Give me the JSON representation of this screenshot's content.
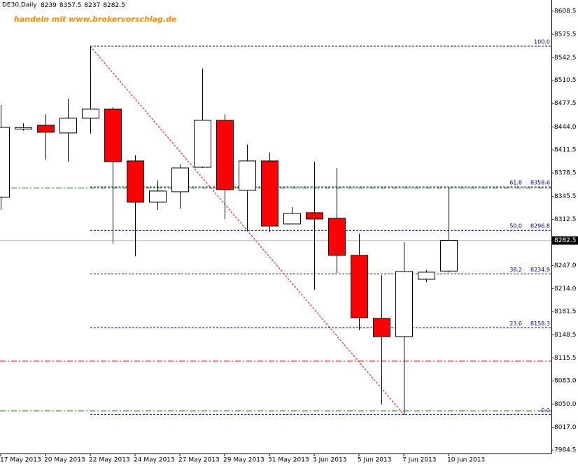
{
  "chart_data": {
    "type": "candlestick",
    "title": "DE30,Daily",
    "watermark": "handeln mit www.brokervorschlag.de",
    "categories": [
      "17 May 2013",
      null,
      "20 May 2013",
      null,
      "22 May 2013",
      null,
      "24 May 2013",
      null,
      "27 May 2013",
      null,
      "29 May 2013",
      null,
      "31 May 2013",
      null,
      "3 Jun 2013",
      null,
      "5 Jun 2013",
      null,
      "7 Jun 2013",
      null,
      "10 Jun 2013"
    ],
    "open": [
      8343.8,
      8441.0,
      8446.3,
      8435.4,
      8456.3,
      8469.2,
      8395.6,
      8336.9,
      8351.8,
      8386.6,
      8453.3,
      8353.8,
      8395.6,
      8306.0,
      8322.0,
      8314.0,
      8261.3,
      8171.7,
      8145.8,
      8227.4,
      8239.0
    ],
    "high": [
      8475.2,
      8449.0,
      8462.2,
      8484.1,
      8557.8,
      8472.2,
      8403.5,
      8367.7,
      8390.6,
      8526.9,
      8462.2,
      8418.5,
      8407.5,
      8329.9,
      8394.6,
      8385.6,
      8292.1,
      8233.4,
      8280.3,
      8240.4,
      8357.5
    ],
    "low": [
      8325.9,
      8439.0,
      8397.6,
      8394.6,
      8434.4,
      8278.2,
      8260.3,
      8325.9,
      8327.9,
      8385.6,
      8313.0,
      8296.2,
      8294.2,
      8306.0,
      8212.5,
      8236.4,
      8154.8,
      8049.3,
      8034.4,
      8223.4,
      8237.0
    ],
    "close": [
      8443.3,
      8443.0,
      8436.4,
      8456.3,
      8469.2,
      8394.6,
      8336.9,
      8352.8,
      8385.6,
      8453.3,
      8354.8,
      8395.6,
      8303.0,
      8321.0,
      8313.0,
      8261.3,
      8172.7,
      8145.8,
      8238.4,
      8237.4,
      8282.5
    ],
    "up_color": "#ffffff",
    "down_color": "#ff0000",
    "ylim": [
      7979.6,
      8624.4
    ],
    "yticks": [
      {
        "value": 7984.5,
        "label": "7984.5"
      },
      {
        "value": 8017,
        "label": "8017.0"
      },
      {
        "value": 8050,
        "label": "8050.0"
      },
      {
        "value": 8083,
        "label": "8083.0"
      },
      8115.5,
      8148.5,
      8181.5,
      {
        "value": 8214,
        "label": "8214.0"
      },
      {
        "value": 8247,
        "label": "8247.0"
      },
      8312.5,
      8345.5,
      8378.5,
      8411.5,
      {
        "value": 8444,
        "label": "8444.0"
      },
      8477.5,
      8510.5,
      8542.5,
      8575.5,
      8608.5
    ],
    "fibonacci": [
      {
        "level": "100.0",
        "value": 8558.7
      },
      {
        "level": "61.8",
        "value": 8358.6
      },
      {
        "level": "50.0",
        "value": 8296.8
      },
      {
        "level": "38.2",
        "value": 8234.9
      },
      {
        "level": "23.6",
        "value": 8158.3
      },
      {
        "level": "0.0",
        "value": 8035.0
      }
    ],
    "fib_color": "#000080",
    "trend_color": "#ff0000",
    "hlines": [
      {
        "value": 8357.0,
        "color": "#008000"
      },
      {
        "value": 8111.0,
        "color": "#ff0000"
      },
      {
        "value": 8040.3,
        "color": "#008000"
      }
    ]
  }
}
